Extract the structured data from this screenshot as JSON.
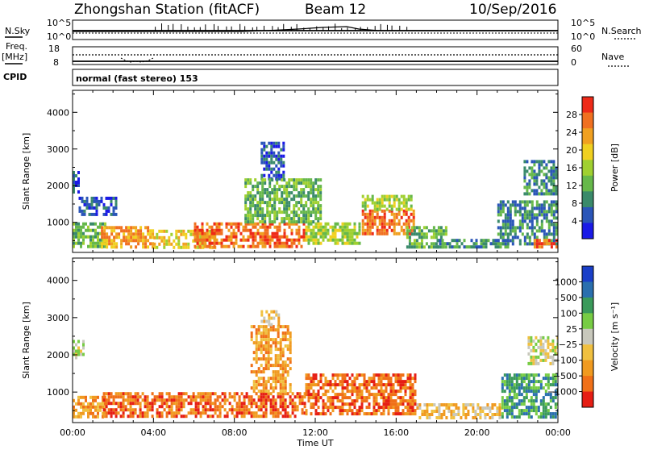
{
  "header": {
    "station": "Zhongshan Station (fitACF)",
    "beam": "Beam 12",
    "date": "10/Sep/2016"
  },
  "noise_panel": {
    "left_label": "N.Sky",
    "right_label": "N.Search",
    "left_ticks": [
      "10^5",
      "10^0"
    ],
    "right_ticks": [
      "10^5",
      "10^0"
    ]
  },
  "freq_panel": {
    "left_label_1": "Freq.",
    "left_label_2": "[MHz]",
    "right_label": "Nave",
    "left_ticks": [
      "18",
      "8"
    ],
    "right_ticks": [
      "60",
      "0"
    ]
  },
  "cpid": {
    "label": "CPID",
    "text": "normal (fast stereo) 153"
  },
  "chart_data": [
    {
      "type": "heatmap",
      "panel": "power",
      "ylabel": "Slant Range [km]",
      "xlabel": "",
      "x_range_hours": [
        0,
        24
      ],
      "ylim_km": [
        180,
        4600
      ],
      "yticks": [
        "1000",
        "2000",
        "3000",
        "4000"
      ],
      "colorbar": {
        "label": "Power [dB]",
        "ticks": [
          "4",
          "8",
          "12",
          "16",
          "20",
          "24",
          "28"
        ],
        "range": [
          0,
          32
        ],
        "colors": [
          "#1a1ae6",
          "#2a55b8",
          "#3a8a6a",
          "#66b84a",
          "#a0d030",
          "#f0d020",
          "#f0a020",
          "#f07020",
          "#ee2a18"
        ]
      },
      "regions": [
        {
          "t0": 0.0,
          "t1": 1.6,
          "r0": 300,
          "r1": 1000,
          "level": 12
        },
        {
          "t0": 0.3,
          "t1": 2.2,
          "r0": 1250,
          "r1": 1700,
          "level": 7
        },
        {
          "t0": 0.0,
          "t1": 0.35,
          "r0": 1800,
          "r1": 2400,
          "level": 6
        },
        {
          "t0": 1.4,
          "t1": 4.0,
          "r0": 300,
          "r1": 900,
          "level": 22
        },
        {
          "t0": 4.0,
          "t1": 7.0,
          "r0": 300,
          "r1": 800,
          "level": 18
        },
        {
          "t0": 6.0,
          "t1": 11.5,
          "r0": 350,
          "r1": 1000,
          "level": 27
        },
        {
          "t0": 9.3,
          "t1": 10.4,
          "r0": 2200,
          "r1": 3200,
          "level": 7
        },
        {
          "t0": 8.5,
          "t1": 12.3,
          "r0": 1000,
          "r1": 2200,
          "level": 13
        },
        {
          "t0": 11.5,
          "t1": 14.2,
          "r0": 400,
          "r1": 1000,
          "level": 17
        },
        {
          "t0": 14.3,
          "t1": 16.9,
          "r0": 700,
          "r1": 1350,
          "level": 27
        },
        {
          "t0": 14.3,
          "t1": 16.8,
          "r0": 1350,
          "r1": 1750,
          "level": 15
        },
        {
          "t0": 16.5,
          "t1": 18.5,
          "r0": 350,
          "r1": 900,
          "level": 11
        },
        {
          "t0": 18.0,
          "t1": 21.5,
          "r0": 300,
          "r1": 550,
          "level": 8
        },
        {
          "t0": 21.0,
          "t1": 24.0,
          "r0": 400,
          "r1": 1600,
          "level": 10
        },
        {
          "t0": 22.3,
          "t1": 24.0,
          "r0": 1800,
          "r1": 2700,
          "level": 8
        },
        {
          "t0": 22.8,
          "t1": 24.0,
          "r0": 300,
          "r1": 550,
          "level": 25
        }
      ]
    },
    {
      "type": "heatmap",
      "panel": "velocity",
      "ylabel": "Slant Range [km]",
      "xlabel": "Time UT",
      "x_range_hours": [
        0,
        24
      ],
      "ylim_km": [
        180,
        4600
      ],
      "yticks": [
        "1000",
        "2000",
        "3000",
        "4000"
      ],
      "xticks": [
        "00:00",
        "04:00",
        "08:00",
        "12:00",
        "16:00",
        "20:00",
        "00:00"
      ],
      "colorbar": {
        "label": "Velocity [m s⁻¹]",
        "ticks": [
          "1000",
          "500",
          "100",
          "25",
          "−25",
          "−100",
          "−500",
          "−1000"
        ],
        "colors": [
          "#1a3fc8",
          "#2a6fae",
          "#3a9a5a",
          "#77cc44",
          "#c8c8bc",
          "#f0c040",
          "#f09a20",
          "#f07018",
          "#e61e14"
        ]
      },
      "regions": [
        {
          "t0": 0.0,
          "t1": 1.6,
          "r0": 300,
          "r1": 900,
          "level": 6
        },
        {
          "t0": 0.0,
          "t1": 0.5,
          "r0": 1900,
          "r1": 2400,
          "level": 4
        },
        {
          "t0": 1.5,
          "t1": 11.5,
          "r0": 350,
          "r1": 1000,
          "level": 7
        },
        {
          "t0": 8.8,
          "t1": 10.8,
          "r0": 1000,
          "r1": 2800,
          "level": 6
        },
        {
          "t0": 9.3,
          "t1": 10.2,
          "r0": 2800,
          "r1": 3200,
          "level": 5
        },
        {
          "t0": 11.5,
          "t1": 17.0,
          "r0": 450,
          "r1": 1500,
          "level": 7
        },
        {
          "t0": 17.0,
          "t1": 21.3,
          "r0": 300,
          "r1": 700,
          "level": 5
        },
        {
          "t0": 21.2,
          "t1": 24.0,
          "r0": 300,
          "r1": 1500,
          "level": 2
        },
        {
          "t0": 22.5,
          "t1": 24.0,
          "r0": 1800,
          "r1": 2500,
          "level": 4
        }
      ]
    }
  ]
}
